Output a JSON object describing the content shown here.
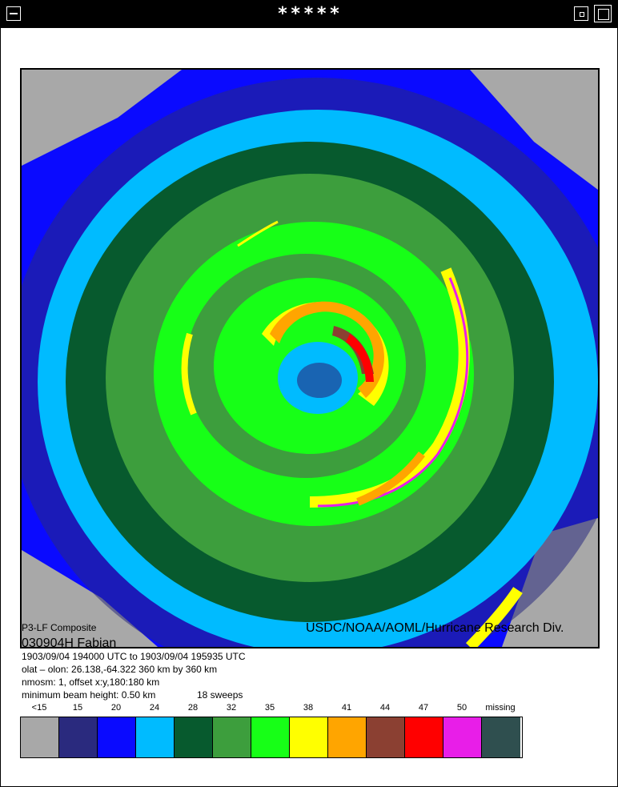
{
  "window": {
    "title": "*****"
  },
  "radar": {
    "title": "P3-LF Composite",
    "agency": "USDC/NOAA/AOML/Hurricane Research Div.",
    "storm_id": "030904H   Fabian",
    "time_range": "1903/09/04 194000 UTC to 1903/09/04 195935 UTC",
    "location": "olat – olon: 26.138,-64.322  360 km by 360 km",
    "mosaic": "nmosm: 1, offset x:y,180:180 km",
    "beam": "minimum beam height: 0.50 km",
    "sweeps": "18 sweeps"
  },
  "legend": {
    "labels": [
      "<15",
      "15",
      "20",
      "24",
      "28",
      "32",
      "35",
      "38",
      "41",
      "44",
      "47",
      "50",
      "missing"
    ],
    "colors": [
      "#a8a8a8",
      "#2a2a7e",
      "#0a0aff",
      "#00bbff",
      "#075a2e",
      "#3d9e3d",
      "#17ff17",
      "#ffff00",
      "#ffa500",
      "#8b4032",
      "#ff0000",
      "#e81ee8",
      "#2f4f4f"
    ]
  }
}
